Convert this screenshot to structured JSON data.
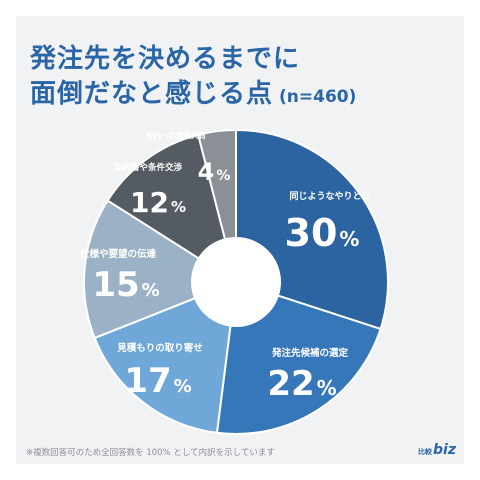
{
  "title_line1": "発注先を決めるまでに",
  "title_line2": "面倒だなと感じる点",
  "sample_size": "(n=460)",
  "footnote": "※複数回答可のため全回答数を 100% として内訳を示しています",
  "logo": {
    "mark": "比較",
    "biz": "biz"
  },
  "colors": {
    "background": "#f1f2f4",
    "accent": "#2a65a8"
  },
  "chart_data": {
    "type": "pie",
    "donut": true,
    "categories": [
      "同じようなやりとり",
      "発注先候補の選定",
      "見積もりの取り寄せ",
      "仕様や要望の伝達",
      "契約書や条件交渉",
      "社内への情報共有"
    ],
    "values": [
      30,
      22,
      17,
      15,
      12,
      4
    ],
    "value_labels": [
      "30",
      "22",
      "17",
      "15",
      "12",
      "4"
    ],
    "unit": "%",
    "colors": [
      "#2b64a0",
      "#3677b9",
      "#6ea7d8",
      "#9bb2c6",
      "#555b63",
      "#8b9096"
    ],
    "label_colors": [
      "#ffffff",
      "#ffffff",
      "#ffffff",
      "#ffffff",
      "#ffffff",
      "#ffffff"
    ],
    "start_angle_deg": 0,
    "direction": "clockwise"
  }
}
